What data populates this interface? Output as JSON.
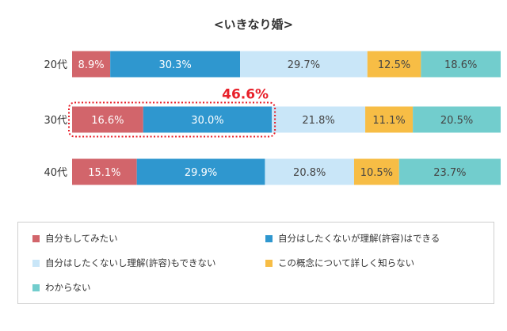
{
  "chart_data": {
    "type": "bar",
    "orientation": "horizontal",
    "stacked": true,
    "title": "<いきなり婚>",
    "categories": [
      "20代",
      "30代",
      "40代"
    ],
    "series": [
      {
        "name": "自分もしてみたい",
        "color": "#d2656b",
        "values": [
          8.9,
          16.6,
          15.1
        ],
        "labels": [
          "8.9%",
          "16.6%",
          "15.1%"
        ]
      },
      {
        "name": "自分はしたくないが理解(許容)はできる",
        "color": "#2f97cf",
        "values": [
          30.3,
          30.0,
          29.9
        ],
        "labels": [
          "30.3%",
          "30.0%",
          "29.9%"
        ]
      },
      {
        "name": "自分はしたくないし理解(許容)もできない",
        "color": "#c9e6f8",
        "values": [
          29.7,
          21.8,
          20.8
        ],
        "labels": [
          "29.7%",
          "21.8%",
          "20.8%"
        ]
      },
      {
        "name": "この概念について詳しく知らない",
        "color": "#f7bd45",
        "values": [
          12.5,
          11.1,
          10.5
        ],
        "labels": [
          "12.5%",
          "11.1%",
          "10.5%"
        ]
      },
      {
        "name": "わからない",
        "color": "#72cdcd",
        "values": [
          18.6,
          20.5,
          23.7
        ],
        "labels": [
          "18.6%",
          "20.5%",
          "23.7%"
        ]
      }
    ],
    "xlim": [
      0,
      100
    ],
    "grid": false,
    "legend_position": "bottom",
    "annotation": {
      "text": "46.6%",
      "category_index": 1,
      "series_indices": [
        0,
        1
      ],
      "color": "#e8202a"
    }
  }
}
